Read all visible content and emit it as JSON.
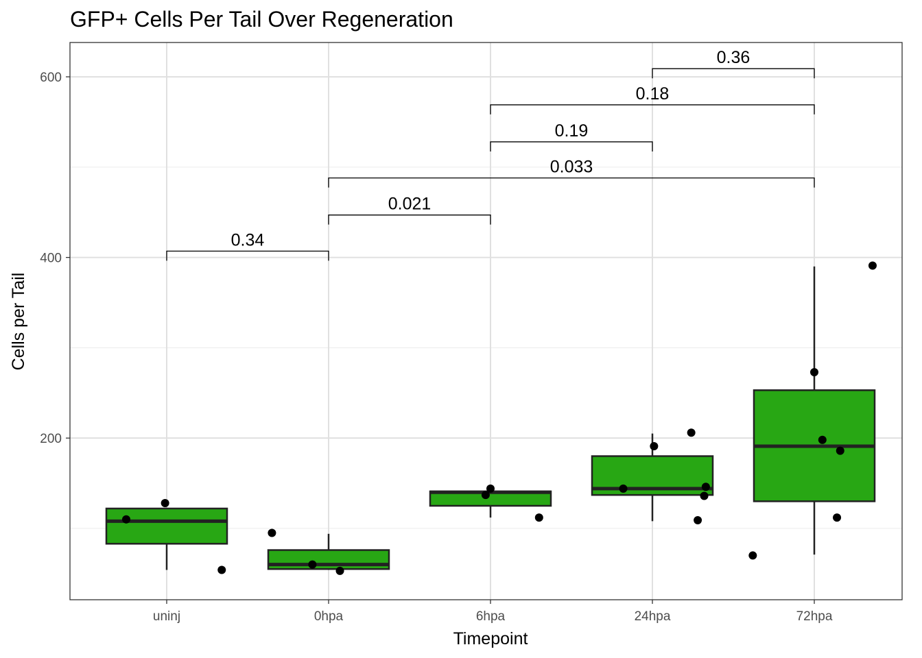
{
  "chart_data": {
    "type": "box",
    "title": "GFP+ Cells Per Tail Over Regeneration",
    "xlabel": "Timepoint",
    "ylabel": "Cells per Tail",
    "categories": [
      "uninj",
      "0hpa",
      "6hpa",
      "24hpa",
      "72hpa"
    ],
    "ylim": [
      21,
      638
    ],
    "yticks": [
      200,
      400,
      600
    ],
    "grid": true,
    "legend": "none",
    "box_color": "#28a714",
    "boxes": [
      {
        "category": "uninj",
        "whisker_low": 54,
        "q1": 83,
        "median": 108,
        "q3": 122,
        "whisker_high": 122
      },
      {
        "category": "0hpa",
        "whisker_low": 54,
        "q1": 55,
        "median": 60,
        "q3": 76,
        "whisker_high": 94
      },
      {
        "category": "6hpa",
        "whisker_low": 112,
        "q1": 125,
        "median": 140,
        "q3": 141,
        "whisker_high": 141
      },
      {
        "category": "24hpa",
        "whisker_low": 108,
        "q1": 137,
        "median": 144,
        "q3": 180,
        "whisker_high": 205
      },
      {
        "category": "72hpa",
        "whisker_low": 71,
        "q1": 130,
        "median": 191,
        "q3": 253,
        "whisker_high": 390
      }
    ],
    "points": [
      {
        "category": "uninj",
        "jitter": -0.25,
        "y": 110
      },
      {
        "category": "uninj",
        "jitter": -0.01,
        "y": 128
      },
      {
        "category": "uninj",
        "jitter": 0.34,
        "y": 54
      },
      {
        "category": "0hpa",
        "jitter": -0.35,
        "y": 95
      },
      {
        "category": "0hpa",
        "jitter": -0.1,
        "y": 60
      },
      {
        "category": "0hpa",
        "jitter": 0.07,
        "y": 53
      },
      {
        "category": "6hpa",
        "jitter": -0.03,
        "y": 137
      },
      {
        "category": "6hpa",
        "jitter": 0.0,
        "y": 144
      },
      {
        "category": "6hpa",
        "jitter": 0.3,
        "y": 112
      },
      {
        "category": "24hpa",
        "jitter": -0.18,
        "y": 144
      },
      {
        "category": "24hpa",
        "jitter": 0.01,
        "y": 191
      },
      {
        "category": "24hpa",
        "jitter": 0.24,
        "y": 206
      },
      {
        "category": "24hpa",
        "jitter": 0.28,
        "y": 109
      },
      {
        "category": "24hpa",
        "jitter": 0.32,
        "y": 136
      },
      {
        "category": "24hpa",
        "jitter": 0.33,
        "y": 146
      },
      {
        "category": "72hpa",
        "jitter": -0.38,
        "y": 70
      },
      {
        "category": "72hpa",
        "jitter": 0.05,
        "y": 198
      },
      {
        "category": "72hpa",
        "jitter": 0.14,
        "y": 112
      },
      {
        "category": "72hpa",
        "jitter": 0.16,
        "y": 186
      },
      {
        "category": "72hpa",
        "jitter": 0.36,
        "y": 391
      },
      {
        "category": "72hpa",
        "jitter": -0.0,
        "y": 273
      }
    ],
    "comparisons": [
      {
        "from": "uninj",
        "to": "0hpa",
        "y": 407,
        "label": "0.34"
      },
      {
        "from": "0hpa",
        "to": "6hpa",
        "y": 447,
        "label": "0.021"
      },
      {
        "from": "0hpa",
        "to": "72hpa",
        "y": 488,
        "label": "0.033"
      },
      {
        "from": "6hpa",
        "to": "24hpa",
        "y": 528,
        "label": "0.19"
      },
      {
        "from": "6hpa",
        "to": "72hpa",
        "y": 569,
        "label": "0.18"
      },
      {
        "from": "24hpa",
        "to": "72hpa",
        "y": 609,
        "label": "0.36"
      }
    ]
  }
}
